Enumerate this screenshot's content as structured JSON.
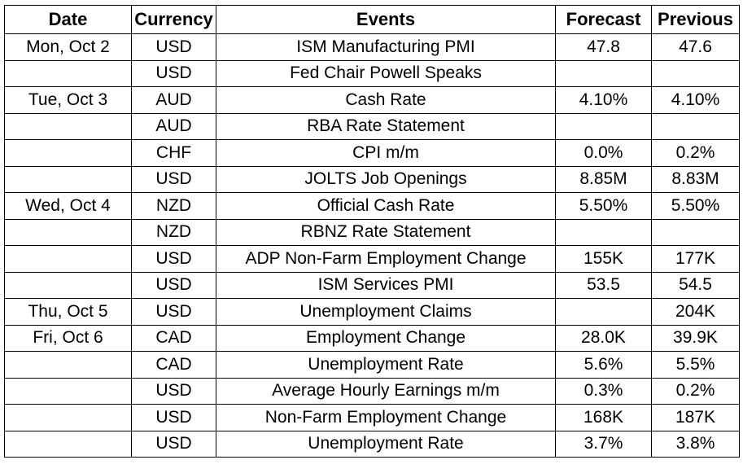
{
  "headers": {
    "date": "Date",
    "currency": "Currency",
    "events": "Events",
    "forecast": "Forecast",
    "previous": "Previous"
  },
  "rows": [
    {
      "date": "Mon, Oct 2",
      "currency": "USD",
      "event": "ISM Manufacturing PMI",
      "forecast": "47.8",
      "previous": "47.6"
    },
    {
      "date": "",
      "currency": "USD",
      "event": "Fed Chair Powell Speaks",
      "forecast": "",
      "previous": ""
    },
    {
      "date": "Tue, Oct 3",
      "currency": "AUD",
      "event": "Cash Rate",
      "forecast": "4.10%",
      "previous": "4.10%"
    },
    {
      "date": "",
      "currency": "AUD",
      "event": "RBA Rate Statement",
      "forecast": "",
      "previous": ""
    },
    {
      "date": "",
      "currency": "CHF",
      "event": "CPI m/m",
      "forecast": "0.0%",
      "previous": "0.2%"
    },
    {
      "date": "",
      "currency": "USD",
      "event": "JOLTS Job Openings",
      "forecast": "8.85M",
      "previous": "8.83M"
    },
    {
      "date": "Wed, Oct 4",
      "currency": "NZD",
      "event": "Official Cash Rate",
      "forecast": "5.50%",
      "previous": "5.50%"
    },
    {
      "date": "",
      "currency": "NZD",
      "event": "RBNZ Rate Statement",
      "forecast": "",
      "previous": ""
    },
    {
      "date": "",
      "currency": "USD",
      "event": "ADP Non-Farm Employment Change",
      "forecast": "155K",
      "previous": "177K"
    },
    {
      "date": "",
      "currency": "USD",
      "event": "ISM Services PMI",
      "forecast": "53.5",
      "previous": "54.5"
    },
    {
      "date": "Thu, Oct 5",
      "currency": "USD",
      "event": "Unemployment Claims",
      "forecast": "",
      "previous": "204K"
    },
    {
      "date": "Fri, Oct 6",
      "currency": "CAD",
      "event": "Employment Change",
      "forecast": "28.0K",
      "previous": "39.9K"
    },
    {
      "date": "",
      "currency": "CAD",
      "event": "Unemployment Rate",
      "forecast": "5.6%",
      "previous": "5.5%"
    },
    {
      "date": "",
      "currency": "USD",
      "event": "Average Hourly Earnings m/m",
      "forecast": "0.3%",
      "previous": "0.2%"
    },
    {
      "date": "",
      "currency": "USD",
      "event": "Non-Farm Employment Change",
      "forecast": "168K",
      "previous": "187K"
    },
    {
      "date": "",
      "currency": "USD",
      "event": "Unemployment Rate",
      "forecast": "3.7%",
      "previous": "3.8%"
    }
  ]
}
